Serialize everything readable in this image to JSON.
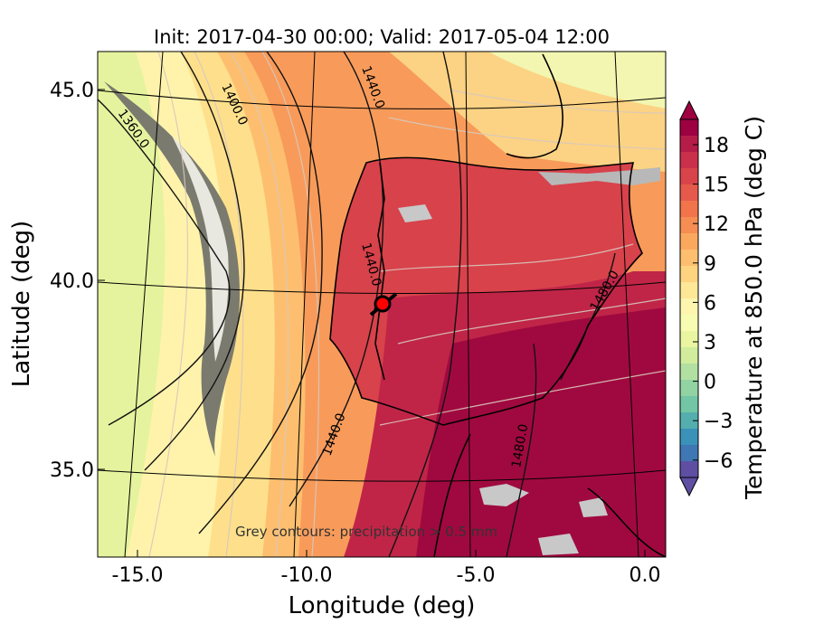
{
  "figure": {
    "title": "Init: 2017-04-30 00:00; Valid: 2017-05-04 12:00",
    "xlabel": "Longitude (deg)",
    "ylabel": "Latitude (deg)",
    "annotation": "Grey contours: precipitation > 0.5 mm"
  },
  "axes": {
    "x_ticks": [
      "-15.0",
      "-10.0",
      "-5.0",
      "0.0"
    ],
    "y_ticks": [
      "45.0",
      "40.0",
      "35.0"
    ]
  },
  "colorbar": {
    "label": "Temperature at 850.0 hPa (deg C)",
    "ticks": [
      "18",
      "15",
      "12",
      "9",
      "6",
      "3",
      "0",
      "−3",
      "−6"
    ],
    "colors": [
      "#9e0142",
      "#b51c48",
      "#ca2f4b",
      "#d9444b",
      "#e65a4b",
      "#f2744a",
      "#f68d53",
      "#fba85f",
      "#fdbf6f",
      "#fed481",
      "#fee797",
      "#fef5ae",
      "#f8fbb2",
      "#e9f5a1",
      "#d0ec9c",
      "#b2e0a2",
      "#92d3a4",
      "#72c6a5",
      "#55aeae",
      "#3b92b9",
      "#3f76b4",
      "#5e4fa2"
    ]
  },
  "contours": {
    "geopotential_labels": [
      "1360.0",
      "1400.0",
      "1440.0",
      "1440.0",
      "1440.0",
      "1480.0",
      "1480.0"
    ]
  },
  "marker": {
    "label": "location-marker",
    "color": "#ff0000"
  },
  "colors": {
    "land_hot": "#a0093f",
    "land_warm": "#d8424b",
    "sea_warm": "#f4874f",
    "sea_mild": "#fbc374",
    "sea_cool": "#fef4ad",
    "sea_cold": "#e3f1a0",
    "precip": "#b8b8b8"
  }
}
